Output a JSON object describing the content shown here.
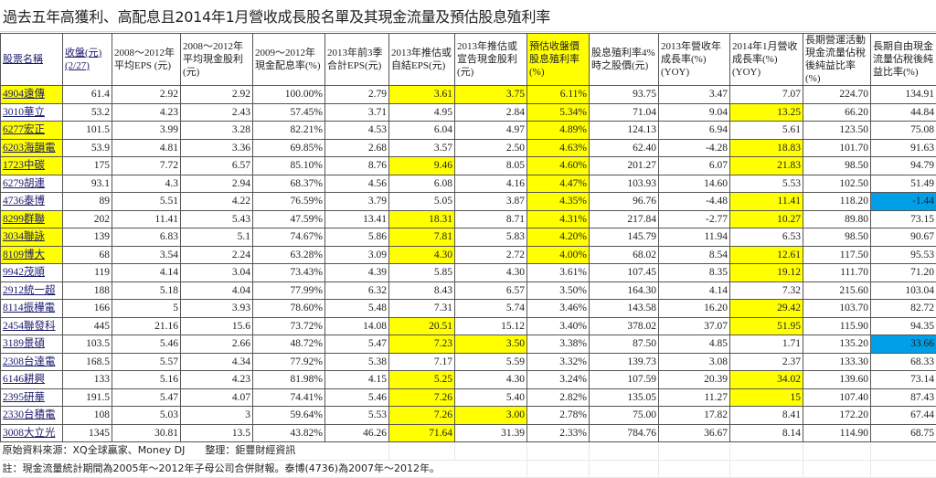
{
  "title": "過去五年高獲利、高配息且2014年1月營收成長股名單及其現金流量及預估股息殖利率",
  "colors": {
    "highlight_yellow": "#ffff00",
    "highlight_blue": "#00a0e8",
    "link": "#1a1a6e"
  },
  "headers": [
    "股票名稱",
    "收盤(元)(2/27)",
    "2008～2012年平均EPS (元)",
    "2008～2012年平均現金股利 (元)",
    "2009～2012年現金配息率(%)",
    "2013年前3季合計EPS(元)",
    "2013年推估或自結EPS(元)",
    "2013年推估或宣告現金股利(元)",
    "預估收盤價股息殖利率(%)",
    "股息殖利率4%時之股價(元)",
    "2013年營收年成長率(%)(YOY)",
    "2014年1月營收成長率(%)(YOY)",
    "長期營運活動現金流量佔稅後純益比率(%)",
    "長期自由現金流量佔稅後純益比率(%)"
  ],
  "rows": [
    {
      "name": "4904遠傳",
      "values": [
        "61.4",
        "2.92",
        "2.92",
        "100.00%",
        "2.79",
        "3.61",
        "3.75",
        "6.11%",
        "93.75",
        "3.47",
        "7.07",
        "224.70",
        "134.91"
      ],
      "hl_name": true,
      "hl": [
        5,
        6,
        7
      ],
      "blue": []
    },
    {
      "name": "3010華立",
      "values": [
        "53.2",
        "4.23",
        "2.43",
        "57.45%",
        "3.71",
        "4.95",
        "2.84",
        "5.34%",
        "71.04",
        "9.04",
        "13.25",
        "66.20",
        "44.84"
      ],
      "hl_name": false,
      "hl": [
        7,
        10
      ],
      "blue": []
    },
    {
      "name": "6277宏正",
      "values": [
        "101.5",
        "3.99",
        "3.28",
        "82.21%",
        "4.53",
        "6.04",
        "4.97",
        "4.89%",
        "124.13",
        "6.94",
        "5.61",
        "123.50",
        "75.08"
      ],
      "hl_name": true,
      "hl": [
        7
      ],
      "blue": []
    },
    {
      "name": "6203海韻電",
      "values": [
        "53.9",
        "4.81",
        "3.36",
        "69.85%",
        "2.68",
        "3.57",
        "2.50",
        "4.63%",
        "62.40",
        "-4.28",
        "18.83",
        "101.70",
        "91.63"
      ],
      "hl_name": true,
      "hl": [
        7,
        10
      ],
      "blue": []
    },
    {
      "name": "1723中碳",
      "values": [
        "175",
        "7.72",
        "6.57",
        "85.10%",
        "8.76",
        "9.46",
        "8.05",
        "4.60%",
        "201.27",
        "6.07",
        "21.83",
        "98.50",
        "94.79"
      ],
      "hl_name": true,
      "hl": [
        5,
        7,
        10
      ],
      "blue": []
    },
    {
      "name": "6279胡連",
      "values": [
        "93.1",
        "4.3",
        "2.94",
        "68.37%",
        "4.56",
        "6.08",
        "4.16",
        "4.47%",
        "103.93",
        "14.60",
        "5.53",
        "102.50",
        "51.49"
      ],
      "hl_name": false,
      "hl": [
        7
      ],
      "blue": []
    },
    {
      "name": "4736泰博",
      "values": [
        "89",
        "5.51",
        "4.22",
        "76.59%",
        "3.79",
        "5.05",
        "3.87",
        "4.35%",
        "96.76",
        "-4.48",
        "11.41",
        "118.20",
        "-1.44"
      ],
      "hl_name": false,
      "hl": [
        7,
        10
      ],
      "blue": [
        12
      ]
    },
    {
      "name": "8299群聯",
      "values": [
        "202",
        "11.41",
        "5.43",
        "47.59%",
        "13.41",
        "18.31",
        "8.71",
        "4.31%",
        "217.84",
        "-2.77",
        "10.27",
        "89.80",
        "73.15"
      ],
      "hl_name": true,
      "hl": [
        5,
        7,
        10
      ],
      "blue": []
    },
    {
      "name": "3034聯詠",
      "values": [
        "139",
        "6.83",
        "5.1",
        "74.67%",
        "5.86",
        "7.81",
        "5.83",
        "4.20%",
        "145.79",
        "11.94",
        "6.53",
        "98.50",
        "90.67"
      ],
      "hl_name": true,
      "hl": [
        5,
        7
      ],
      "blue": []
    },
    {
      "name": "8109博大",
      "values": [
        "68",
        "3.54",
        "2.24",
        "63.28%",
        "3.09",
        "4.30",
        "2.72",
        "4.00%",
        "68.02",
        "8.54",
        "12.61",
        "117.50",
        "95.53"
      ],
      "hl_name": true,
      "hl": [
        5,
        7,
        10
      ],
      "blue": []
    },
    {
      "name": "9942茂順",
      "values": [
        "119",
        "4.14",
        "3.04",
        "73.43%",
        "4.39",
        "5.85",
        "4.30",
        "3.61%",
        "107.45",
        "8.35",
        "19.12",
        "111.70",
        "71.20"
      ],
      "hl_name": false,
      "hl": [
        10
      ],
      "blue": []
    },
    {
      "name": "2912統一超",
      "values": [
        "188",
        "5.18",
        "4.04",
        "77.99%",
        "6.32",
        "8.43",
        "6.57",
        "3.50%",
        "164.30",
        "4.14",
        "7.32",
        "215.60",
        "103.04"
      ],
      "hl_name": false,
      "hl": [],
      "blue": []
    },
    {
      "name": "8114振樺電",
      "values": [
        "166",
        "5",
        "3.93",
        "78.60%",
        "5.48",
        "7.31",
        "5.74",
        "3.46%",
        "143.58",
        "16.20",
        "29.42",
        "103.70",
        "82.72"
      ],
      "hl_name": false,
      "hl": [
        10
      ],
      "blue": []
    },
    {
      "name": "2454聯發科",
      "values": [
        "445",
        "21.16",
        "15.6",
        "73.72%",
        "14.08",
        "20.51",
        "15.12",
        "3.40%",
        "378.02",
        "37.07",
        "51.95",
        "115.90",
        "94.35"
      ],
      "hl_name": false,
      "hl": [
        5,
        10
      ],
      "blue": []
    },
    {
      "name": "3189景碩",
      "values": [
        "103.5",
        "5.46",
        "2.66",
        "48.72%",
        "5.47",
        "7.23",
        "3.50",
        "3.38%",
        "87.50",
        "4.85",
        "1.71",
        "135.20",
        "33.66"
      ],
      "hl_name": false,
      "hl": [
        5,
        6
      ],
      "blue": [
        12
      ]
    },
    {
      "name": "2308台達電",
      "values": [
        "168.5",
        "5.57",
        "4.34",
        "77.92%",
        "5.38",
        "7.17",
        "5.59",
        "3.32%",
        "139.73",
        "3.08",
        "2.37",
        "133.30",
        "68.33"
      ],
      "hl_name": false,
      "hl": [],
      "blue": []
    },
    {
      "name": "6146耕興",
      "values": [
        "133",
        "5.16",
        "4.23",
        "81.98%",
        "4.15",
        "5.25",
        "4.30",
        "3.24%",
        "107.59",
        "20.39",
        "34.02",
        "139.60",
        "73.14"
      ],
      "hl_name": false,
      "hl": [
        5,
        10
      ],
      "blue": []
    },
    {
      "name": "2395研華",
      "values": [
        "191.5",
        "5.47",
        "4.07",
        "74.41%",
        "5.46",
        "7.26",
        "5.40",
        "2.82%",
        "135.05",
        "11.27",
        "15",
        "107.40",
        "87.43"
      ],
      "hl_name": false,
      "hl": [
        5,
        10
      ],
      "blue": []
    },
    {
      "name": "2330台積電",
      "values": [
        "108",
        "5.03",
        "3",
        "59.64%",
        "5.53",
        "7.26",
        "3.00",
        "2.78%",
        "75.00",
        "17.82",
        "8.41",
        "172.20",
        "67.44"
      ],
      "hl_name": false,
      "hl": [
        5,
        6
      ],
      "blue": []
    },
    {
      "name": "3008大立光",
      "values": [
        "1345",
        "30.81",
        "13.5",
        "43.82%",
        "46.26",
        "71.64",
        "31.39",
        "2.33%",
        "784.76",
        "36.67",
        "8.14",
        "114.90",
        "68.75"
      ],
      "hl_name": false,
      "hl": [
        5
      ],
      "blue": []
    }
  ],
  "notes": {
    "source": "原始資料來源：XQ全球贏家、Money DJ　　整理：鉅豐財經資訊",
    "remark": "註：現金流量統計期間為2005年～2012年子母公司合併財報。泰博(4736)為2007年～2012年。"
  }
}
